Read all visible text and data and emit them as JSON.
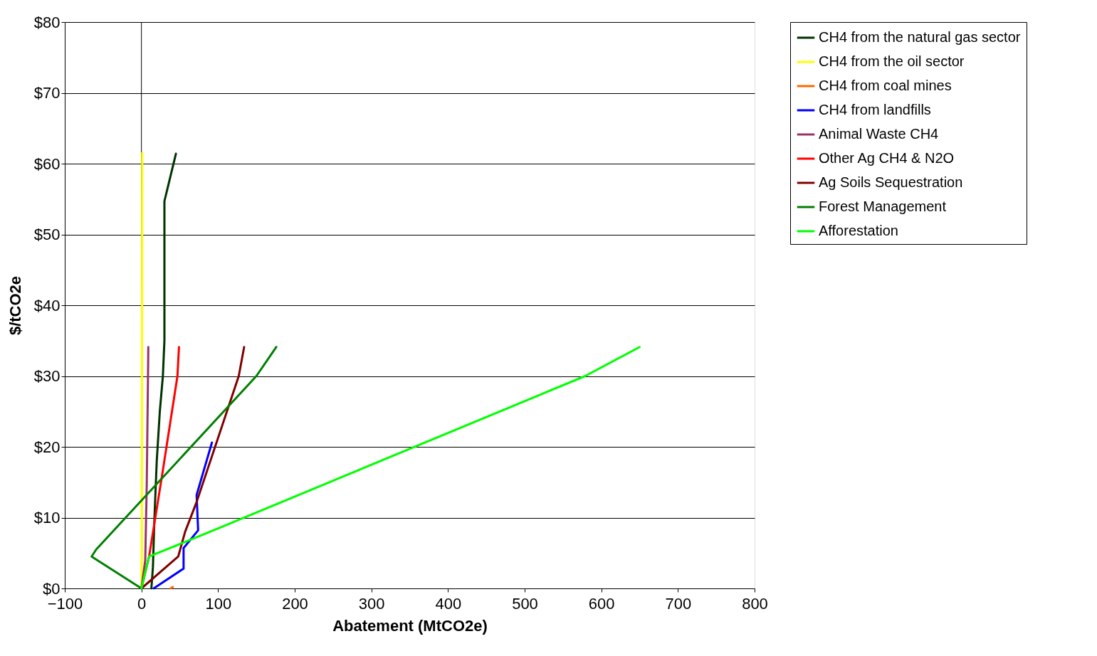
{
  "chart_data": {
    "type": "line",
    "xlabel": "Abatement (MtCO2e)",
    "ylabel": "$/tCO2e",
    "xlim": [
      -100,
      800
    ],
    "xticks": [
      -100,
      0,
      100,
      200,
      300,
      400,
      500,
      600,
      700,
      800
    ],
    "ylim": [
      0,
      80
    ],
    "yticks": [
      {
        "value": 0,
        "label": "$0"
      },
      {
        "value": 10,
        "label": "$10"
      },
      {
        "value": 20,
        "label": "$20"
      },
      {
        "value": 30,
        "label": "$30"
      },
      {
        "value": 40,
        "label": "$40"
      },
      {
        "value": 50,
        "label": "$50"
      },
      {
        "value": 60,
        "label": "$60"
      },
      {
        "value": 70,
        "label": "$70"
      },
      {
        "value": 80,
        "label": "$80"
      }
    ],
    "grid": "y",
    "legend": "right",
    "marker": "none",
    "line_style": "solid",
    "ref_lines": [
      {
        "axis": "x",
        "value": 0,
        "color": "#000000"
      }
    ],
    "series": [
      {
        "name": "CH4 from the natural gas sector",
        "color": "#003300",
        "x": [
          13,
          15,
          17,
          20,
          24,
          28,
          30,
          30,
          45
        ],
        "values": [
          0,
          3,
          10,
          18,
          25,
          30,
          35,
          54.7,
          61.4
        ]
      },
      {
        "name": "CH4 from the oil sector",
        "color": "#ffff00",
        "x": [
          0,
          0.5,
          1
        ],
        "values": [
          0,
          5,
          61.5
        ]
      },
      {
        "name": "CH4 from coal mines",
        "color": "#ff6600",
        "x": [
          38,
          41
        ],
        "values": [
          0,
          0.2
        ]
      },
      {
        "name": "CH4 from landfills",
        "color": "#0000ff",
        "x": [
          16,
          55,
          55,
          74,
          72,
          92
        ],
        "values": [
          0,
          2.8,
          5.7,
          8.2,
          13.2,
          20.6
        ]
      },
      {
        "name": "Animal Waste CH4",
        "color": "#993366",
        "x": [
          0,
          5,
          7,
          9
        ],
        "values": [
          0,
          4,
          15,
          34.1
        ]
      },
      {
        "name": "Other Ag CH4 & N2O",
        "color": "#ff0000",
        "x": [
          0,
          10,
          27,
          47,
          49
        ],
        "values": [
          0,
          4.5,
          16,
          30,
          34.1
        ]
      },
      {
        "name": "Ag Soils Sequestration",
        "color": "#800000",
        "x": [
          0,
          48,
          57,
          72,
          127,
          134
        ],
        "values": [
          0,
          4.5,
          8,
          12.2,
          30,
          34.1
        ]
      },
      {
        "name": "Forest Management",
        "color": "#008000",
        "x": [
          0,
          -65,
          -59,
          150,
          176
        ],
        "values": [
          0,
          4.5,
          5.5,
          30,
          34.1
        ]
      },
      {
        "name": "Afforestation",
        "color": "#00ff00",
        "x": [
          0,
          10,
          94,
          579,
          650
        ],
        "values": [
          0,
          4.5,
          8.2,
          30,
          34.1
        ]
      }
    ]
  }
}
